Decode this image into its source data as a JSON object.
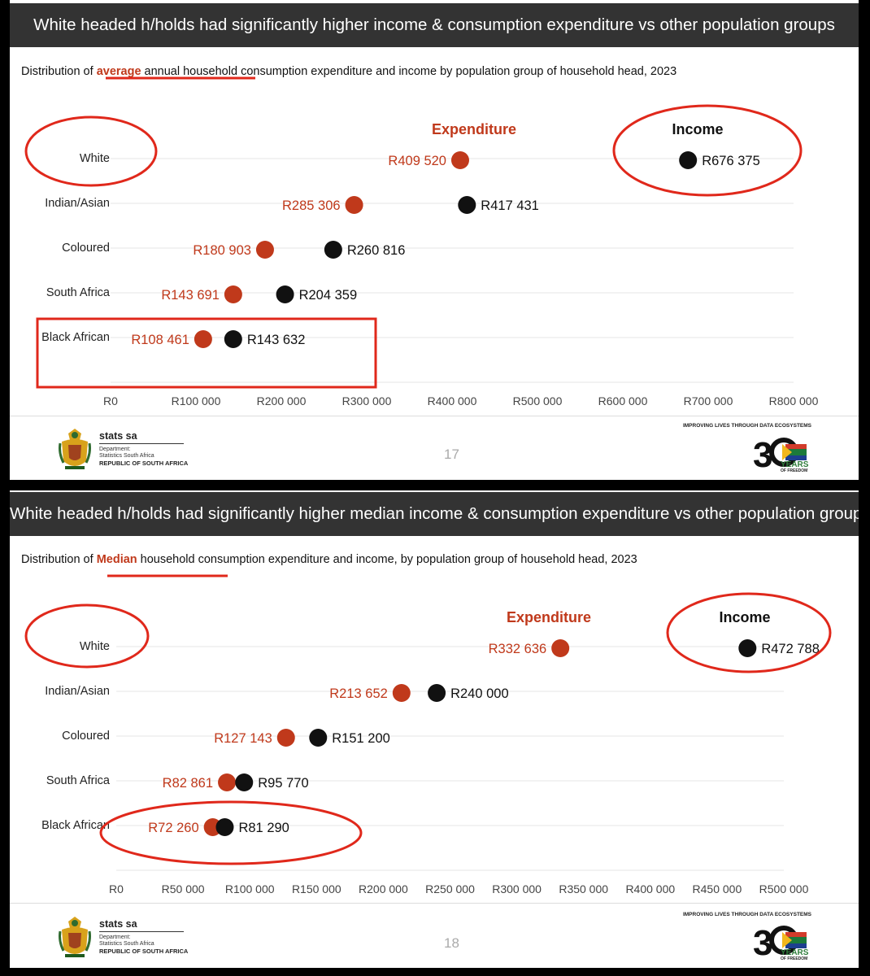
{
  "colors": {
    "expenditure": "#c0391b",
    "income": "#111111",
    "annotation": "#e0281b",
    "title_bar": "#333333"
  },
  "slides": [
    {
      "title": "White headed h/holds had significantly higher income & consumption expenditure vs other population groups",
      "subtitle_pre": "Distribution of ",
      "subtitle_hl": "average",
      "subtitle_post": " annual household consumption expenditure and income by population group of household head, 2023",
      "page_number": "17",
      "org_name": "stats sa",
      "org_line1": "Department:",
      "org_line2": "Statistics South Africa",
      "org_line3": "REPUBLIC OF SOUTH AFRICA",
      "tagline": "IMPROVING LIVES THROUGH DATA ECOSYSTEMS",
      "badge_text": "YEARS",
      "badge_sub": "OF FREEDOM"
    },
    {
      "title": "White headed h/holds had significantly higher median income & consumption expenditure vs other population groups",
      "subtitle_pre": "Distribution of ",
      "subtitle_hl": "Median",
      "subtitle_post": " household consumption expenditure and income, by population group of household head, 2023",
      "page_number": "18",
      "org_name": "stats sa",
      "org_line1": "Department:",
      "org_line2": "Statistics South Africa",
      "org_line3": "REPUBLIC OF SOUTH AFRICA",
      "tagline": "IMPROVING LIVES THROUGH DATA ECOSYSTEMS",
      "badge_text": "YEARS",
      "badge_sub": "OF FREEDOM"
    }
  ],
  "chart_data": [
    {
      "type": "scatter",
      "title": "Distribution of average annual household consumption expenditure and income by population group of household head, 2023",
      "categories": [
        "White",
        "Indian/Asian",
        "Coloured",
        "South Africa",
        "Black African"
      ],
      "series": [
        {
          "name": "Expenditure",
          "values": [
            409520,
            285306,
            180903,
            143691,
            108461
          ],
          "labels": [
            "R409 520",
            "R285 306",
            "R180 903",
            "R143 691",
            "R108 461"
          ]
        },
        {
          "name": "Income",
          "values": [
            676375,
            417431,
            260816,
            204359,
            143632
          ],
          "labels": [
            "R676 375",
            "R417 431",
            "R260 816",
            "R204 359",
            "R143 632"
          ]
        }
      ],
      "xlim": [
        0,
        800000
      ],
      "xticks": [
        "R0",
        "R100 000",
        "R200 000",
        "R300 000",
        "R400 000",
        "R500 000",
        "R600 000",
        "R700 000",
        "R800 000"
      ],
      "grid": true,
      "legend": "series names shown above the top row"
    },
    {
      "type": "scatter",
      "title": "Distribution of Median household consumption expenditure and income, by population group of household head, 2023",
      "categories": [
        "White",
        "Indian/Asian",
        "Coloured",
        "South Africa",
        "Black African"
      ],
      "series": [
        {
          "name": "Expenditure",
          "values": [
            332636,
            213652,
            127143,
            82861,
            72260
          ],
          "labels": [
            "R332 636",
            "R213 652",
            "R127 143",
            "R82 861",
            "R72 260"
          ]
        },
        {
          "name": "Income",
          "values": [
            472788,
            240000,
            151200,
            95770,
            81290
          ],
          "labels": [
            "R472 788",
            "R240 000",
            "R151 200",
            "R95 770",
            "R81 290"
          ]
        }
      ],
      "xlim": [
        0,
        500000
      ],
      "xticks": [
        "R0",
        "R50 000",
        "R100 000",
        "R150 000",
        "R200 000",
        "R250 000",
        "R300 000",
        "R350 000",
        "R400 000",
        "R450 000",
        "R500 000"
      ],
      "grid": true,
      "legend": "series names shown above the top row"
    }
  ]
}
